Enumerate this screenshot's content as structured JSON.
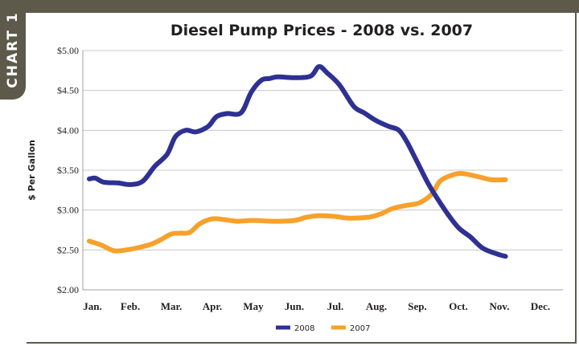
{
  "chart_tag": "CHART 1",
  "chart_data": {
    "type": "line",
    "title": "Diesel Pump Prices - 2008 vs. 2007",
    "xlabel": "",
    "ylabel": "$ Per Gallon",
    "categories": [
      "Jan.",
      "Feb.",
      "Mar.",
      "Apr.",
      "May",
      "Jun.",
      "Jul.",
      "Aug.",
      "Sep.",
      "Oct.",
      "Nov.",
      "Dec."
    ],
    "yticks": [
      "$2.00",
      "$2.50",
      "$3.00",
      "$3.50",
      "$4.00",
      "$4.50",
      "$5.00"
    ],
    "ylim": [
      2.0,
      5.0
    ],
    "grid": true,
    "legend_position": "bottom-center",
    "series": [
      {
        "name": "2008",
        "color": "#2e3192",
        "points": [
          [
            0.0,
            3.39
          ],
          [
            0.15,
            3.4
          ],
          [
            0.35,
            3.35
          ],
          [
            0.7,
            3.34
          ],
          [
            1.0,
            3.32
          ],
          [
            1.3,
            3.36
          ],
          [
            1.6,
            3.55
          ],
          [
            1.9,
            3.7
          ],
          [
            2.1,
            3.92
          ],
          [
            2.35,
            4.0
          ],
          [
            2.6,
            3.98
          ],
          [
            2.9,
            4.05
          ],
          [
            3.1,
            4.17
          ],
          [
            3.35,
            4.21
          ],
          [
            3.7,
            4.22
          ],
          [
            3.95,
            4.48
          ],
          [
            4.2,
            4.63
          ],
          [
            4.4,
            4.65
          ],
          [
            4.6,
            4.67
          ],
          [
            5.0,
            4.66
          ],
          [
            5.4,
            4.68
          ],
          [
            5.6,
            4.8
          ],
          [
            5.8,
            4.72
          ],
          [
            6.1,
            4.57
          ],
          [
            6.45,
            4.3
          ],
          [
            6.7,
            4.22
          ],
          [
            7.0,
            4.12
          ],
          [
            7.3,
            4.05
          ],
          [
            7.55,
            4.0
          ],
          [
            7.75,
            3.85
          ],
          [
            8.0,
            3.6
          ],
          [
            8.3,
            3.3
          ],
          [
            8.7,
            2.98
          ],
          [
            9.0,
            2.78
          ],
          [
            9.3,
            2.66
          ],
          [
            9.6,
            2.52
          ],
          [
            10.0,
            2.44
          ],
          [
            10.15,
            2.42
          ]
        ]
      },
      {
        "name": "2007",
        "color": "#f7a12b",
        "points": [
          [
            0.0,
            2.61
          ],
          [
            0.3,
            2.56
          ],
          [
            0.6,
            2.49
          ],
          [
            0.9,
            2.5
          ],
          [
            1.2,
            2.53
          ],
          [
            1.5,
            2.57
          ],
          [
            1.75,
            2.63
          ],
          [
            2.0,
            2.7
          ],
          [
            2.2,
            2.71
          ],
          [
            2.45,
            2.72
          ],
          [
            2.7,
            2.83
          ],
          [
            3.0,
            2.89
          ],
          [
            3.3,
            2.88
          ],
          [
            3.6,
            2.86
          ],
          [
            4.0,
            2.87
          ],
          [
            4.5,
            2.86
          ],
          [
            5.0,
            2.87
          ],
          [
            5.3,
            2.91
          ],
          [
            5.6,
            2.93
          ],
          [
            6.0,
            2.92
          ],
          [
            6.3,
            2.9
          ],
          [
            6.8,
            2.91
          ],
          [
            7.1,
            2.95
          ],
          [
            7.4,
            3.02
          ],
          [
            7.75,
            3.06
          ],
          [
            8.05,
            3.09
          ],
          [
            8.35,
            3.2
          ],
          [
            8.55,
            3.36
          ],
          [
            8.8,
            3.43
          ],
          [
            9.05,
            3.46
          ],
          [
            9.3,
            3.44
          ],
          [
            9.55,
            3.41
          ],
          [
            9.8,
            3.38
          ],
          [
            10.15,
            3.38
          ]
        ]
      }
    ]
  }
}
